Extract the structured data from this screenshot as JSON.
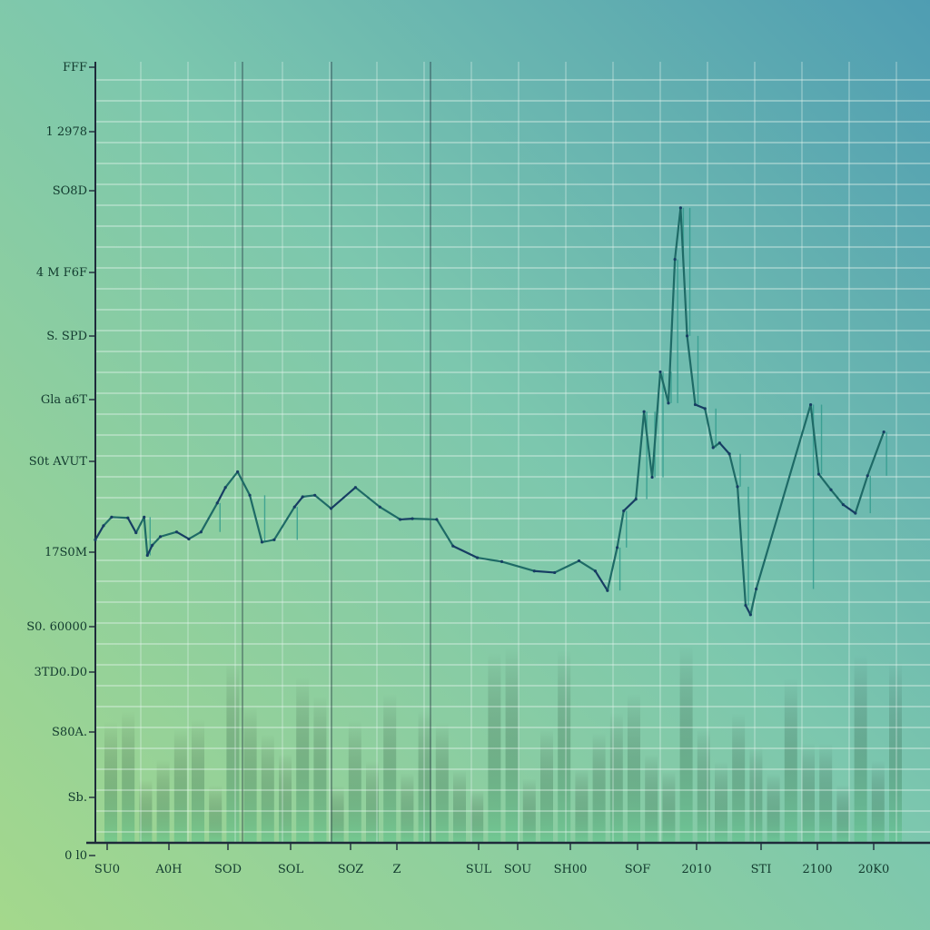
{
  "chart_data": {
    "type": "line",
    "title": "",
    "xlabel": "",
    "ylabel": "",
    "y_tick_labels": [
      "FFF",
      "1 2978",
      "SO8D",
      "4 M F6F",
      "S. SPD",
      "Gla a6T",
      "S0t AVUT",
      "17S0M",
      "S0. 60000",
      "3TD0.D0",
      "S80A.",
      "Sb.",
      "0 l0"
    ],
    "x_tick_labels": [
      "SU0",
      "A0H",
      "SOD",
      "SOL",
      "SOZ",
      "Z",
      "SUL",
      "SOU",
      "SH00",
      "SOF",
      "2010",
      "STI",
      "2100",
      "20K0"
    ],
    "ylim": [
      0,
      100
    ],
    "xlim": [
      0,
      100
    ],
    "grid": true,
    "legend": "none",
    "colors": {
      "bg_start": "#a4d88c",
      "bg_mid": "#7cc7ae",
      "bg_end": "#4f9db2",
      "line_main": "#1e6a66",
      "line_dark": "#173d63",
      "line_accent": "#2f9a8c",
      "axis": "#1e2a3a",
      "grid": "#e6f4ee",
      "bars": "#5cc48a"
    },
    "series": [
      {
        "x": [
          0,
          1,
          2,
          4,
          5,
          6,
          6.4,
          7,
          8,
          10,
          11.5,
          13,
          15,
          16,
          17.5,
          19,
          20.5,
          22,
          24.5,
          25.5,
          27,
          29,
          32,
          35,
          37.5,
          39,
          42,
          44,
          47,
          50,
          54,
          56.5,
          59.5,
          61.5,
          63,
          64.2,
          65,
          66.5,
          67.5,
          68.5,
          69.5,
          70.5,
          71.3,
          72,
          72.8,
          73.8,
          75,
          76,
          76.8,
          78,
          79,
          80,
          80.6,
          81.3,
          88,
          89,
          90.5,
          92,
          93.5,
          95,
          97
        ],
        "y": [
          38.8,
          40.6,
          41.7,
          41.6,
          39.7,
          41.7,
          36.8,
          38.1,
          39.2,
          39.8,
          38.9,
          39.8,
          43.5,
          45.5,
          47.5,
          44.5,
          38.5,
          38.8,
          43.0,
          44.3,
          44.5,
          42.8,
          45.5,
          43.0,
          41.4,
          41.5,
          41.4,
          38.0,
          36.5,
          36.0,
          34.8,
          34.6,
          36.1,
          34.8,
          32.3,
          37.8,
          42.5,
          44.0,
          55.2,
          46.8,
          60.3,
          56.3,
          74.7,
          81.3,
          64.9,
          56.1,
          55.6,
          50.6,
          51.2,
          49.8,
          45.6,
          30.4,
          29.2,
          32.5,
          56.1,
          47.2,
          45.2,
          43.3,
          42.2,
          47.0,
          52.6
        ]
      }
    ]
  }
}
